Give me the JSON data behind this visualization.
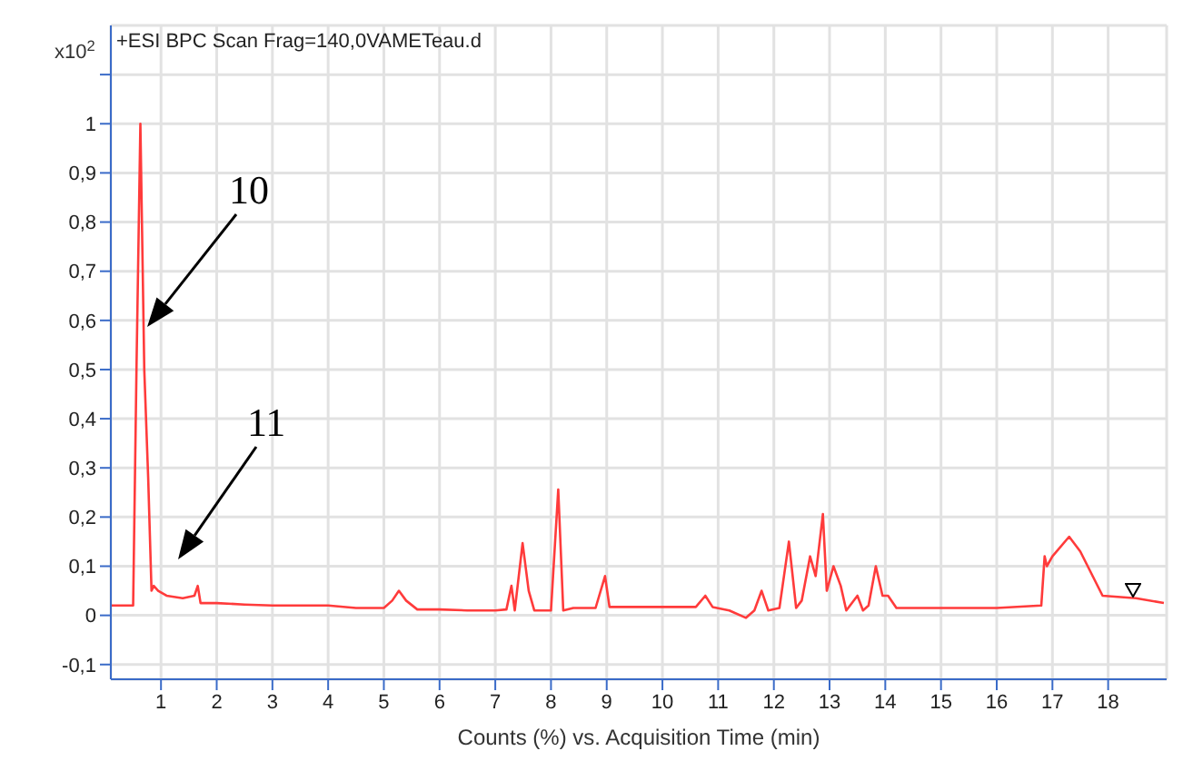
{
  "chart_data": {
    "type": "line",
    "title": "+ESI BPC Scan Frag=140,0VAMETeau.d",
    "xlabel": "Counts (%) vs. Acquisition Time (min)",
    "ylabel": "x10$^{2}$",
    "x": [
      0.1,
      0.5,
      0.56,
      0.63,
      0.7,
      0.77,
      0.83,
      0.87,
      0.95,
      1.1,
      1.39,
      1.6,
      1.66,
      1.71,
      2.0,
      2.5,
      3.0,
      3.5,
      4.0,
      4.5,
      5.0,
      5.15,
      5.27,
      5.4,
      5.6,
      6.0,
      6.5,
      7.0,
      7.2,
      7.29,
      7.35,
      7.49,
      7.6,
      7.7,
      8.0,
      8.13,
      8.22,
      8.4,
      8.8,
      8.97,
      9.05,
      9.5,
      10.0,
      10.6,
      10.77,
      10.9,
      11.2,
      11.5,
      11.65,
      11.78,
      11.9,
      12.1,
      12.27,
      12.4,
      12.5,
      12.65,
      12.75,
      12.88,
      12.95,
      13.07,
      13.2,
      13.3,
      13.5,
      13.6,
      13.7,
      13.83,
      13.95,
      14.05,
      14.2,
      15.0,
      16.0,
      16.8,
      16.86,
      16.9,
      17.0,
      17.3,
      17.5,
      17.9,
      18.5,
      19.0
    ],
    "series": [
      {
        "color": "#ff3b3b",
        "values": [
          0.02,
          0.02,
          0.5,
          1.0,
          0.5,
          0.28,
          0.05,
          0.06,
          0.05,
          0.04,
          0.035,
          0.04,
          0.06,
          0.025,
          0.025,
          0.022,
          0.02,
          0.02,
          0.02,
          0.015,
          0.015,
          0.03,
          0.05,
          0.03,
          0.012,
          0.012,
          0.01,
          0.01,
          0.012,
          0.06,
          0.01,
          0.147,
          0.05,
          0.01,
          0.01,
          0.256,
          0.01,
          0.015,
          0.015,
          0.08,
          0.017,
          0.017,
          0.017,
          0.017,
          0.04,
          0.017,
          0.01,
          -0.005,
          0.01,
          0.05,
          0.01,
          0.015,
          0.15,
          0.015,
          0.03,
          0.12,
          0.08,
          0.206,
          0.05,
          0.1,
          0.06,
          0.01,
          0.04,
          0.01,
          0.02,
          0.1,
          0.04,
          0.04,
          0.015,
          0.015,
          0.015,
          0.02,
          0.12,
          0.1,
          0.12,
          0.16,
          0.13,
          0.04,
          0.035,
          0.025
        ]
      }
    ],
    "xlim": [
      0.1,
      19.05
    ],
    "xticks": [
      1,
      2,
      3,
      4,
      5,
      6,
      7,
      8,
      9,
      10,
      11,
      12,
      13,
      14,
      15,
      16,
      17,
      18
    ],
    "ylim": [
      -0.13,
      1.2
    ],
    "yticks": [
      {
        "value": -0.1,
        "label": "-0,1"
      },
      0,
      {
        "value": 0.1,
        "label": "0,1"
      },
      {
        "value": 0.2,
        "label": "0,2"
      },
      {
        "value": 0.3,
        "label": "0,3"
      },
      {
        "value": 0.4,
        "label": "0,4"
      },
      {
        "value": 0.5,
        "label": "0,5"
      },
      {
        "value": 0.6,
        "label": "0,6"
      },
      {
        "value": 0.7,
        "label": "0,7"
      },
      {
        "value": 0.8,
        "label": "0,8"
      },
      {
        "value": 0.9,
        "label": "0,9"
      },
      1,
      {
        "value": 1.1,
        "label": null
      }
    ],
    "grid": true,
    "marker": "none",
    "line_style": "solid",
    "annotations": [
      "10",
      "11"
    ]
  }
}
